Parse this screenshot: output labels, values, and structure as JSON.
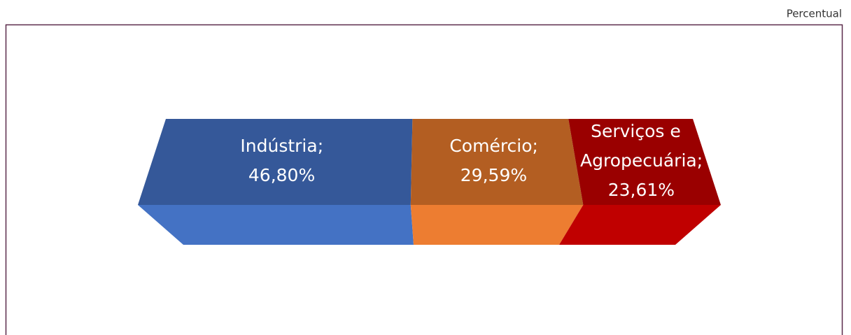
{
  "chart_data": {
    "type": "pie",
    "subtitle": "Percentual",
    "categories": [
      "Indústria",
      "Comércio",
      "Serviços e Agropecuária"
    ],
    "values": [
      46.8,
      29.59,
      23.61
    ],
    "value_labels": [
      "46,80%",
      "29,59%",
      "23,61%"
    ],
    "label_separator": ";",
    "colors": [
      "#4472c4",
      "#ed7d31",
      "#c00000"
    ],
    "top_colors": [
      "#355899",
      "#b35e22",
      "#9a0000"
    ]
  }
}
